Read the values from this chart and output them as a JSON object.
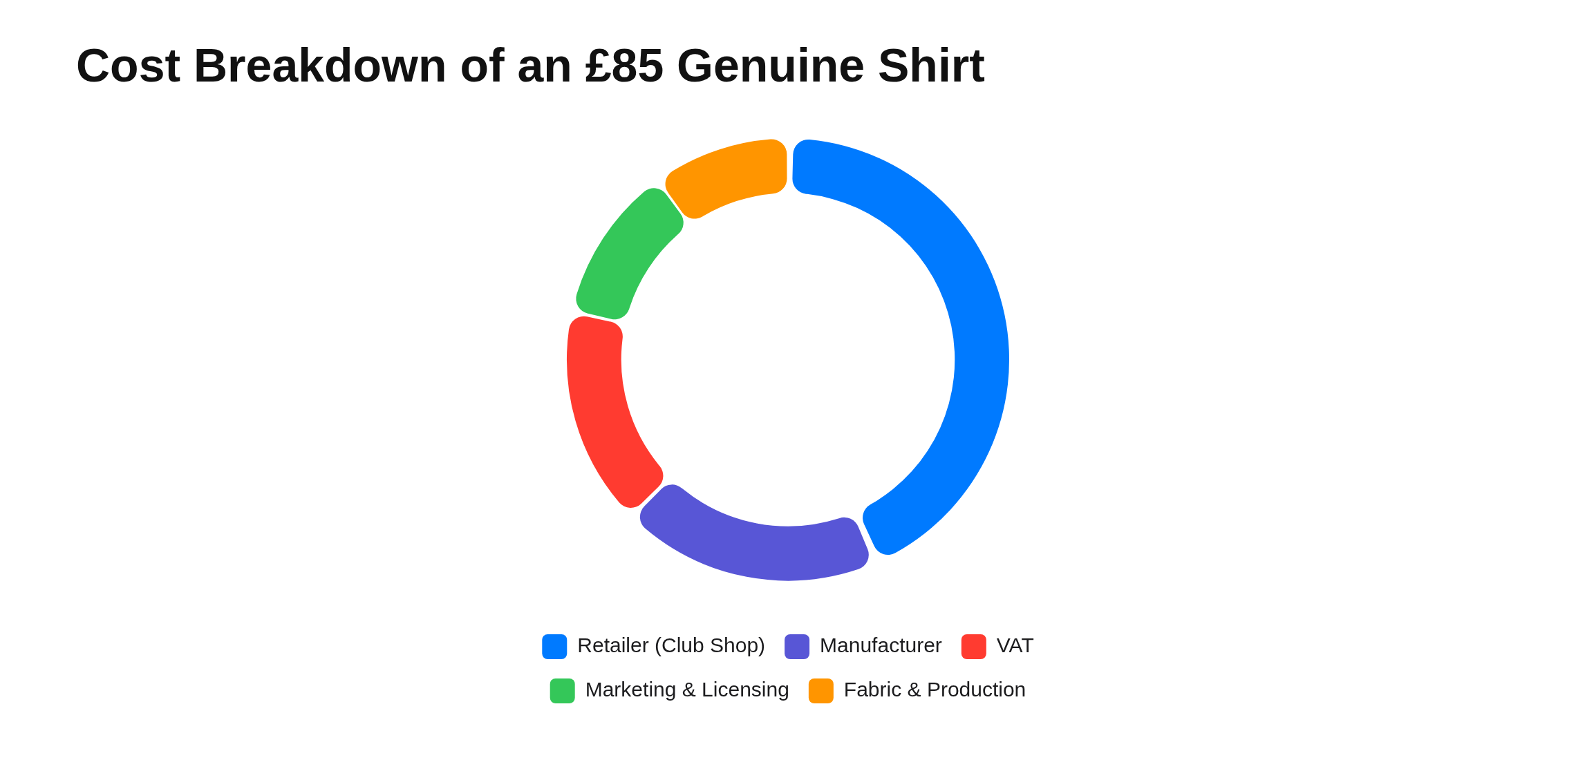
{
  "chart_data": {
    "type": "donut",
    "title": "Cost Breakdown of an £85 Genuine Shirt",
    "categories": [
      "Retailer (Club Shop)",
      "Manufacturer",
      "VAT",
      "Marketing & Licensing",
      "Fabric & Production"
    ],
    "values": [
      43.5,
      19,
      16,
      11.5,
      10
    ],
    "colors": [
      "#007aff",
      "#5856d6",
      "#ff3b30",
      "#34c759",
      "#ff9500"
    ],
    "legend": "bottom"
  }
}
